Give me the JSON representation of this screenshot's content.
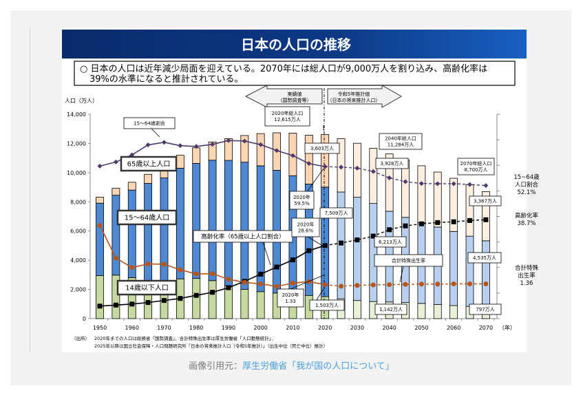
{
  "title": "日本の人口の推移",
  "summary": [
    "○ 日本の人口は近年減少局面を迎えている。2070年には総人口が9,000万人を割り込み、高齢化率は",
    "39%の水準になると推計されている。"
  ],
  "arrows": {
    "actual": [
      "実績値",
      "（国勢調査等）"
    ],
    "projection": [
      "令和5年推計値",
      "（日本の将来推計人口）"
    ]
  },
  "source_note": [
    "（出所）",
    "2020年までの人口は総務省「国勢調査」、合計特殊出生率は厚生労働省「人口動態統計」、",
    "2025年以降は国立社会保障・人口問題研究所「日本の将来推計人口（令和5年推計）」（出生中位（死亡中位）推計）"
  ],
  "caption": {
    "prefix": "画像引用元：",
    "link": "厚生労働省「我が国の人口について」"
  },
  "colors": {
    "title_bg": "#0b3478",
    "age0_14": "#c6d9a0",
    "age0_14_proj": "#e8f0d8",
    "age15_64": "#4f88d3",
    "age15_64_proj": "#b9cfee",
    "age65": "#fcd5b4",
    "age65_proj": "#fdeee2",
    "ratio_line": "#4e3a6e",
    "aging_line": "#000000",
    "tfr_line": "#b5561b"
  },
  "chart_data": {
    "type": "bar",
    "stacked": true,
    "ylabel": "人口（万人）",
    "xlabel": "（年）",
    "ylim": [
      0,
      14000
    ],
    "yticks": [
      "0",
      "2,000",
      "4,000",
      "6,000",
      "8,000",
      "10,000",
      "12,000",
      "14,000"
    ],
    "xticks": [
      "1950",
      "1960",
      "1970",
      "1980",
      "1990",
      "2000",
      "2010",
      "2020",
      "2030",
      "2040",
      "2050",
      "2060",
      "2070"
    ],
    "x": [
      1950,
      1955,
      1960,
      1965,
      1970,
      1975,
      1980,
      1985,
      1990,
      1995,
      2000,
      2005,
      2010,
      2015,
      2020,
      2025,
      2030,
      2035,
      2040,
      2045,
      2050,
      2055,
      2060,
      2065,
      2070
    ],
    "projection_from": 2025,
    "series": [
      {
        "name": "14歳以下人口",
        "values": [
          2943,
          2980,
          2807,
          2517,
          2482,
          2722,
          2751,
          2603,
          2249,
          2001,
          1847,
          1752,
          1680,
          1589,
          1503,
          1363,
          1240,
          1169,
          1142,
          1103,
          1041,
          966,
          893,
          840,
          797
        ]
      },
      {
        "name": "15～64歳人口",
        "values": [
          4966,
          5473,
          6000,
          6744,
          7157,
          7581,
          7883,
          8251,
          8590,
          8716,
          8622,
          8409,
          8103,
          7629,
          7509,
          7310,
          7076,
          6722,
          6213,
          5832,
          5540,
          5307,
          5078,
          4809,
          4535
        ]
      },
      {
        "name": "65歳以上人口",
        "values": [
          411,
          479,
          535,
          624,
          739,
          887,
          1065,
          1247,
          1489,
          1826,
          2204,
          2567,
          2925,
          3347,
          3603,
          3653,
          3696,
          3773,
          3928,
          3945,
          3888,
          3766,
          3644,
          3529,
          3367
        ]
      }
    ],
    "lines": [
      {
        "name": "15～64歳割合",
        "unit": "%",
        "right_axis_max": 80,
        "values": [
          59.7,
          61.3,
          64.1,
          68.0,
          69.0,
          67.7,
          67.4,
          68.2,
          69.7,
          69.5,
          68.1,
          65.8,
          63.8,
          60.7,
          59.5,
          59.3,
          58.9,
          57.6,
          55.1,
          53.6,
          52.9,
          52.8,
          52.8,
          52.5,
          52.1
        ]
      },
      {
        "name": "高齢化率（65歳以上人口割合）",
        "unit": "%",
        "right_axis_max": 80,
        "values": [
          4.9,
          5.3,
          5.7,
          6.3,
          7.1,
          7.9,
          9.1,
          10.3,
          12.1,
          14.6,
          17.4,
          20.2,
          23.0,
          26.6,
          28.6,
          29.6,
          30.8,
          32.3,
          34.8,
          36.3,
          37.1,
          37.6,
          37.9,
          38.4,
          38.7
        ]
      },
      {
        "name": "合計特殊出生率",
        "unit": "",
        "right_axis_max": 8,
        "values": [
          3.65,
          2.37,
          2.0,
          2.14,
          2.13,
          1.91,
          1.75,
          1.76,
          1.54,
          1.42,
          1.36,
          1.26,
          1.39,
          1.45,
          1.33,
          1.27,
          1.3,
          1.32,
          1.33,
          1.34,
          1.35,
          1.35,
          1.36,
          1.36,
          1.36
        ]
      }
    ],
    "annotations": [
      [
        "15～64歳割合"
      ],
      [
        "65歳以上人口"
      ],
      [
        "15～64歳人口"
      ],
      [
        "14歳以下人口"
      ],
      [
        "高齢化率（65歳以上人口割合）"
      ],
      [
        "2020年総人口",
        "12,615万人"
      ],
      [
        "3,603万人"
      ],
      [
        "2020年",
        "59.5%"
      ],
      [
        "7,509万人"
      ],
      [
        "2020年",
        "28.6%"
      ],
      [
        "2020年",
        "1.33"
      ],
      [
        "1,503万人"
      ],
      [
        "2040年総人口",
        "11,284万人"
      ],
      [
        "3,928万人"
      ],
      [
        "2070年総人口",
        "8,700万人"
      ],
      [
        "3,367万人"
      ],
      [
        "6,213万人"
      ],
      [
        "合計特殊出生率"
      ],
      [
        "4,535万人"
      ],
      [
        "1,142万人"
      ],
      [
        "797万人"
      ]
    ],
    "right_labels": [
      [
        "15~64歳",
        "人口割合",
        "52.1%"
      ],
      [
        "高齢化率",
        "38.7%"
      ],
      [
        "合計特殊",
        "出生率",
        "1.36"
      ]
    ]
  }
}
